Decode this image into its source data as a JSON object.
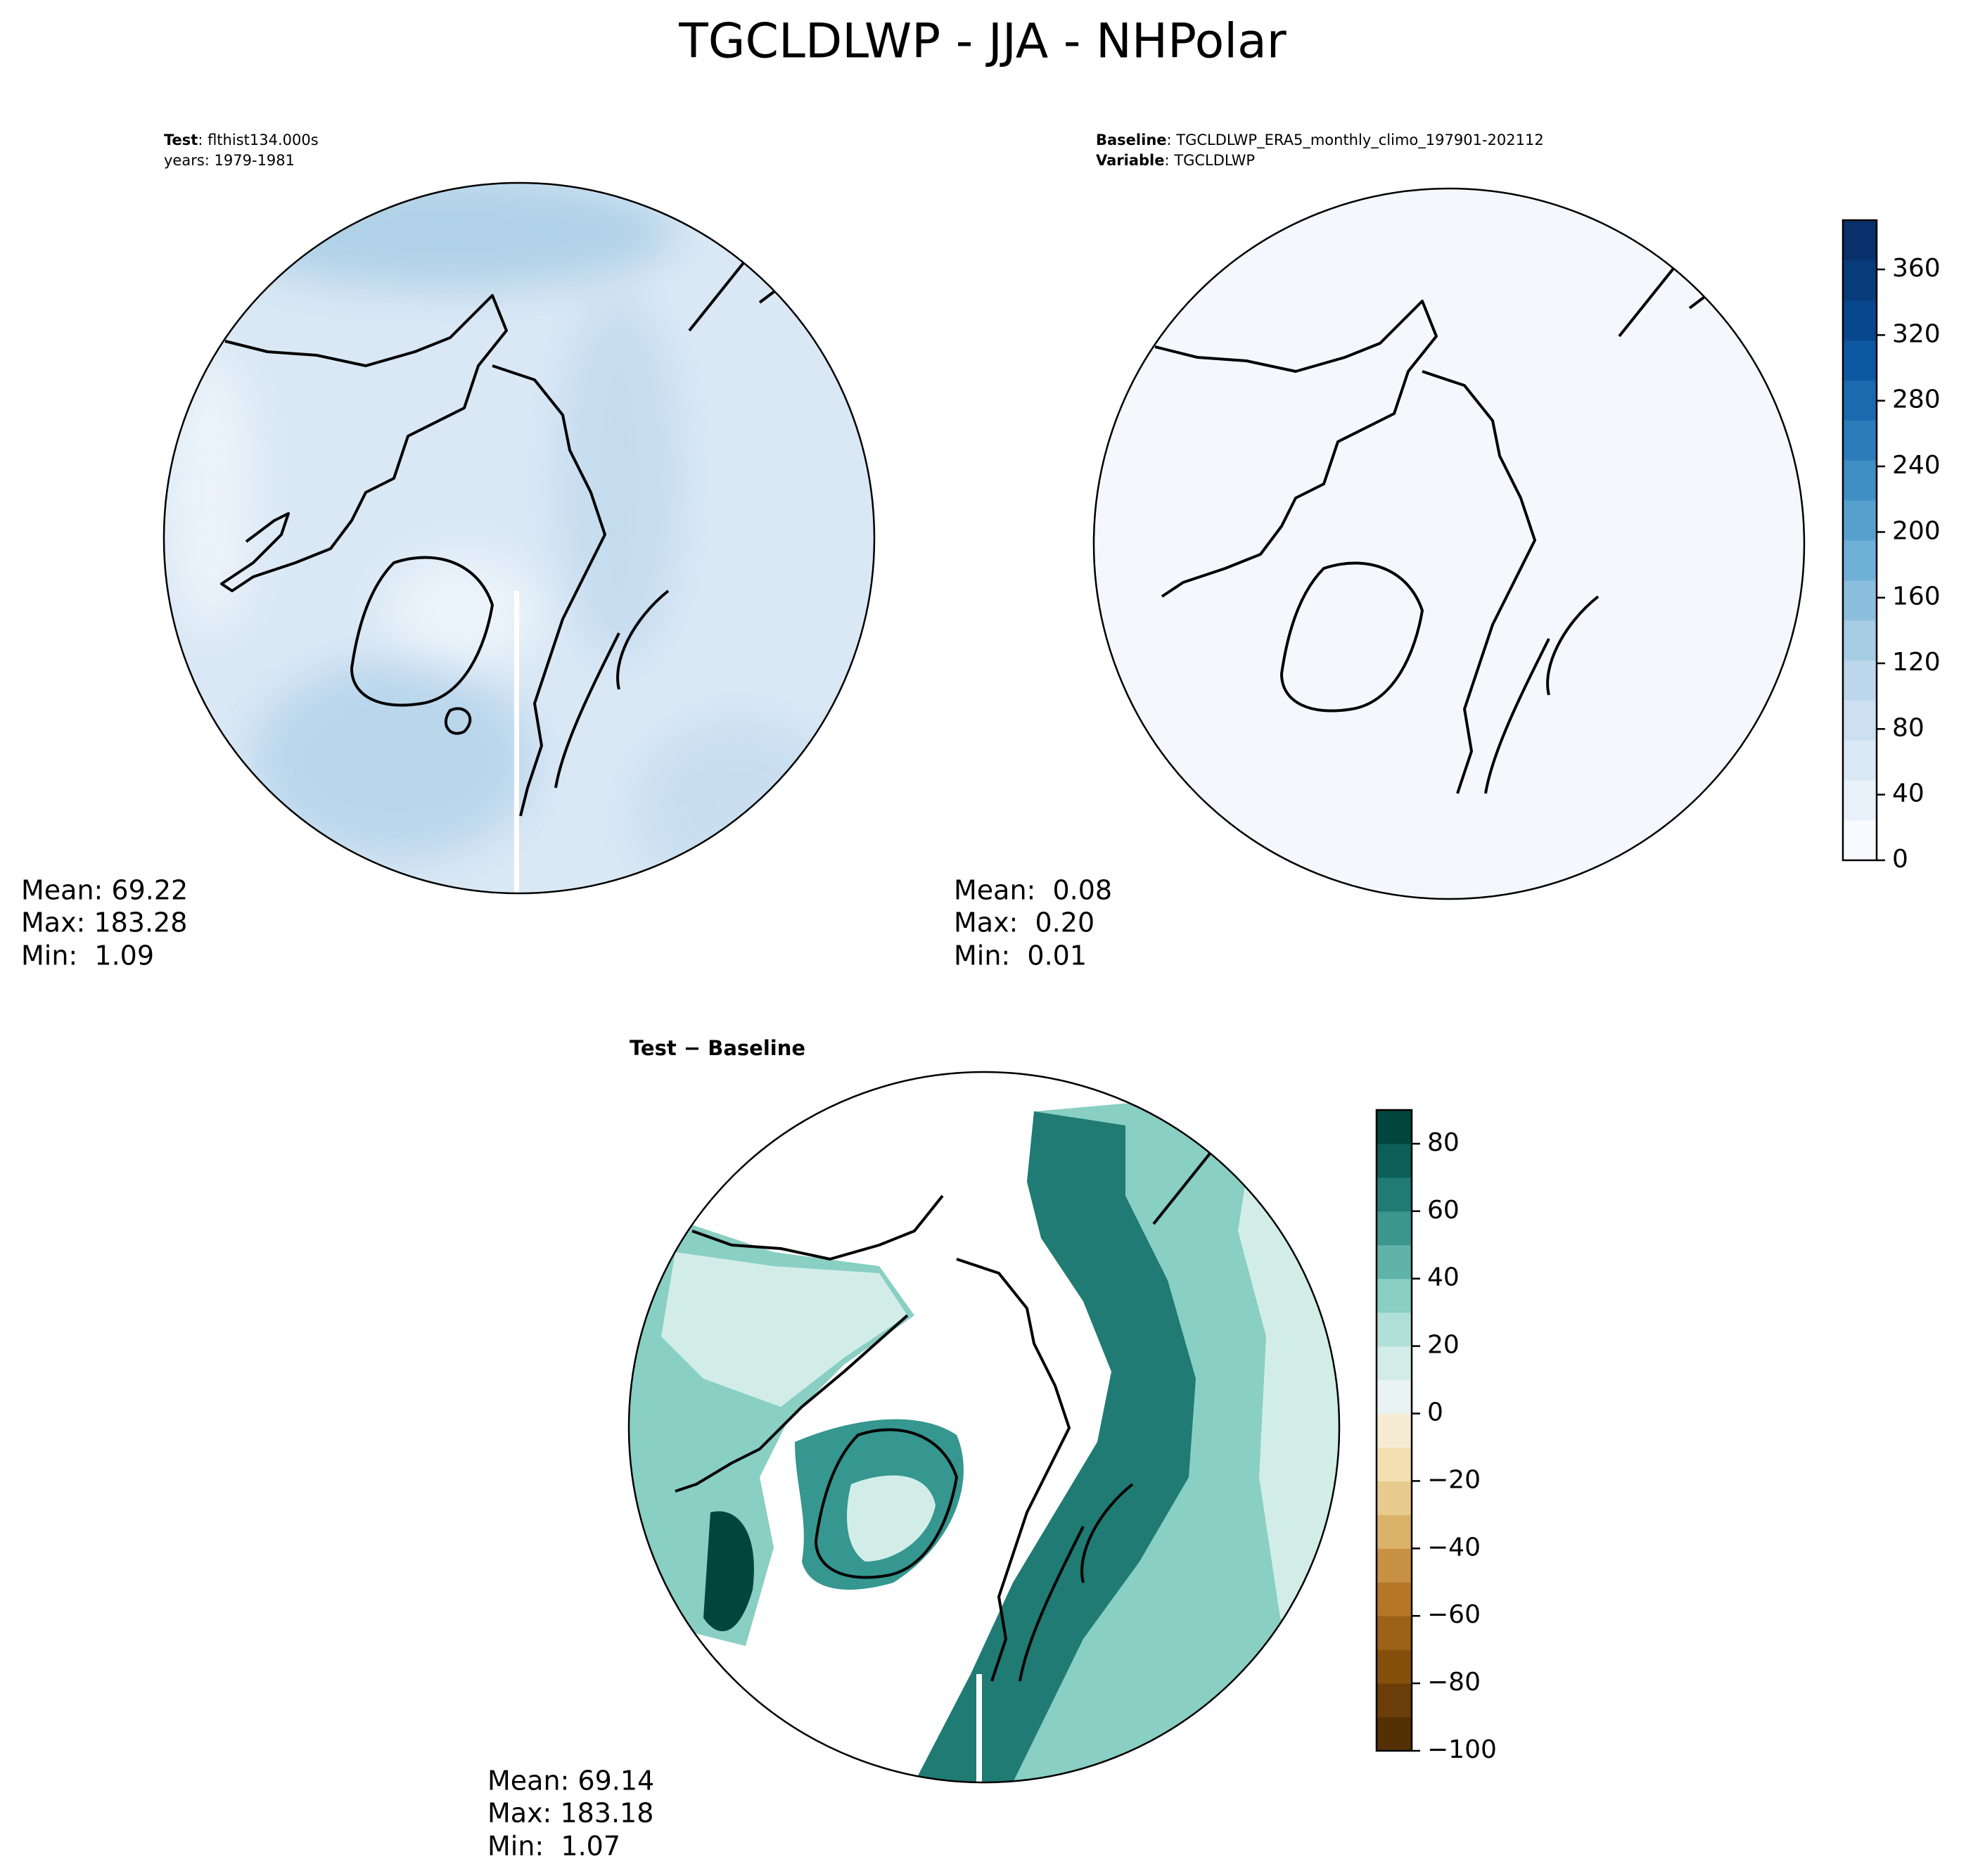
{
  "title": "TGCLDLWP - JJA - NHPolar",
  "panels": [
    {
      "header": [
        {
          "bold": "Test",
          "text": ": flthist134.000s"
        },
        {
          "text": "years: 1979-1981"
        }
      ],
      "stats": [
        "Mean: 69.22",
        "Max: 183.28",
        "Min:  1.09"
      ]
    },
    {
      "header": [
        {
          "bold": "Baseline",
          "text": ": TGCLDLWP_ERA5_monthly_climo_197901-202112"
        },
        {
          "bold": "Variable",
          "text": ": TGCLDLWP"
        }
      ],
      "stats": [
        "Mean:  0.08",
        "Max:  0.20",
        "Min:  0.01"
      ]
    },
    {
      "header": [
        {
          "bold": "Test − Baseline"
        }
      ],
      "stats": [
        "Mean: 69.14",
        "Max: 183.18",
        "Min:  1.07"
      ]
    }
  ],
  "colorbars": [
    {
      "ylim": [
        0,
        390
      ],
      "yticks": [
        0,
        40,
        80,
        120,
        160,
        200,
        240,
        280,
        320,
        360
      ],
      "colors": [
        "#f7fbff",
        "#e9f2fa",
        "#dbe9f6",
        "#cde0f1",
        "#bdd7ec",
        "#a6cde4",
        "#8cbfdd",
        "#6fb0d7",
        "#56a0ce",
        "#3f8fc5",
        "#2c7cba",
        "#1b69af",
        "#0d58a1",
        "#08478d",
        "#083b7a",
        "#08306b"
      ]
    },
    {
      "ylim": [
        -100,
        90
      ],
      "yticks": [
        {
          "value": -100,
          "label": "−100"
        },
        {
          "value": -80,
          "label": "−80"
        },
        {
          "value": -60,
          "label": "−60"
        },
        {
          "value": -40,
          "label": "−40"
        },
        {
          "value": -20,
          "label": "−20"
        },
        0,
        20,
        40,
        60,
        80
      ],
      "colors": [
        "#543005",
        "#6b3d08",
        "#84500b",
        "#9c6217",
        "#b57627",
        "#c99144",
        "#dbb26a",
        "#e8cb8f",
        "#f3dfb2",
        "#f6ecd4",
        "#e9f3f1",
        "#d2ede8",
        "#b0e0d8",
        "#89cfc3",
        "#5fb3a8",
        "#3b978e",
        "#1f7b73",
        "#0b5f57",
        "#01463d"
      ]
    }
  ]
}
